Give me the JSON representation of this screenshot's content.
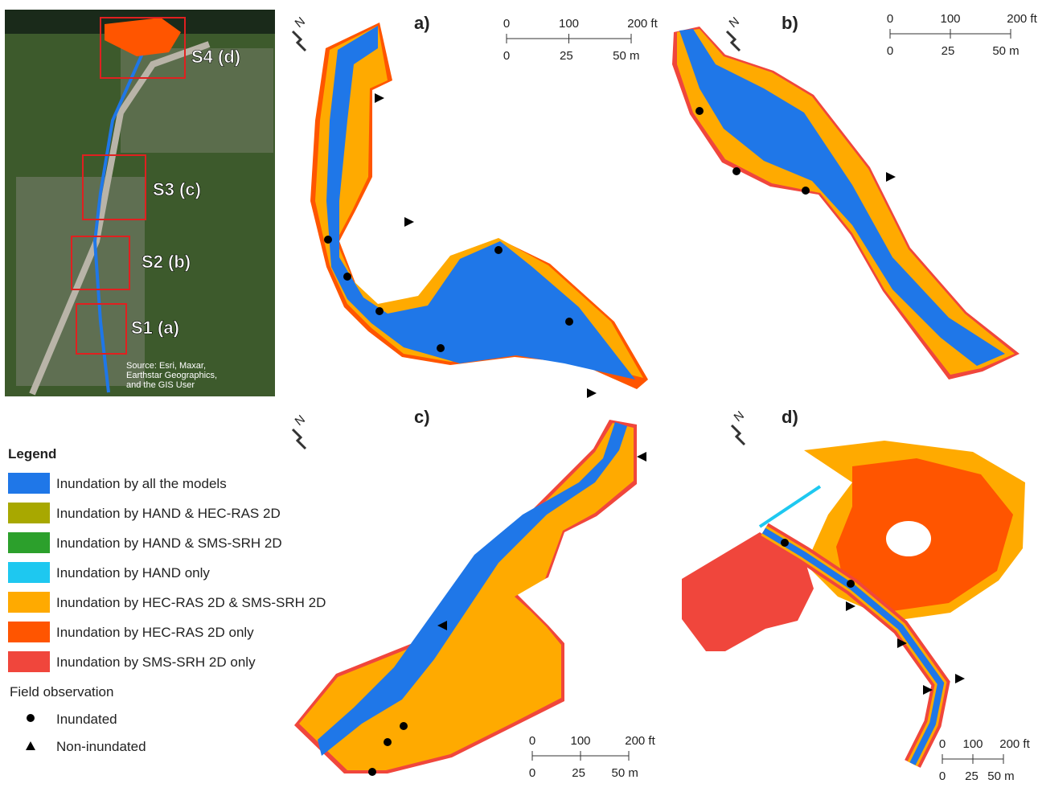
{
  "inset": {
    "labels": [
      "S4 (d)",
      "S3 (c)",
      "S2 (b)",
      "S1 (a)"
    ],
    "source": [
      "Source: Esri, Maxar,",
      "Earthstar Geographics,",
      "and the GIS User"
    ]
  },
  "panels": [
    {
      "label": "a)",
      "north": "N",
      "scale_ft": [
        "0",
        "100",
        "200 ft"
      ],
      "scale_m": [
        "0",
        "25",
        "50 m"
      ]
    },
    {
      "label": "b)",
      "north": "N",
      "scale_ft": [
        "0",
        "100",
        "200 ft"
      ],
      "scale_m": [
        "0",
        "25",
        "50 m"
      ]
    },
    {
      "label": "c)",
      "north": "N",
      "scale_ft": [
        "0",
        "100",
        "200 ft"
      ],
      "scale_m": [
        "0",
        "25",
        "50 m"
      ]
    },
    {
      "label": "d)",
      "north": "N",
      "scale_ft": [
        "0",
        "100",
        "200 ft"
      ],
      "scale_m": [
        "0",
        "25",
        "50 m"
      ]
    }
  ],
  "legend": {
    "title": "Legend",
    "items": [
      {
        "label": "Inundation by all the models",
        "color": "#1f77e8"
      },
      {
        "label": "Inundation by HAND & HEC-RAS 2D",
        "color": "#a8a800"
      },
      {
        "label": "Inundation by HAND & SMS-SRH 2D",
        "color": "#2ca02c"
      },
      {
        "label": "Inundation by HAND only",
        "color": "#1ec8f0"
      },
      {
        "label": "Inundation by HEC-RAS 2D & SMS-SRH 2D",
        "color": "#ffaa00"
      },
      {
        "label": "Inundation by HEC-RAS 2D only",
        "color": "#ff5500"
      },
      {
        "label": "Inundation by SMS-SRH 2D only",
        "color": "#f0463c"
      }
    ],
    "field_title": "Field observation",
    "field_items": [
      "Inundated",
      "Non-inundated"
    ]
  }
}
